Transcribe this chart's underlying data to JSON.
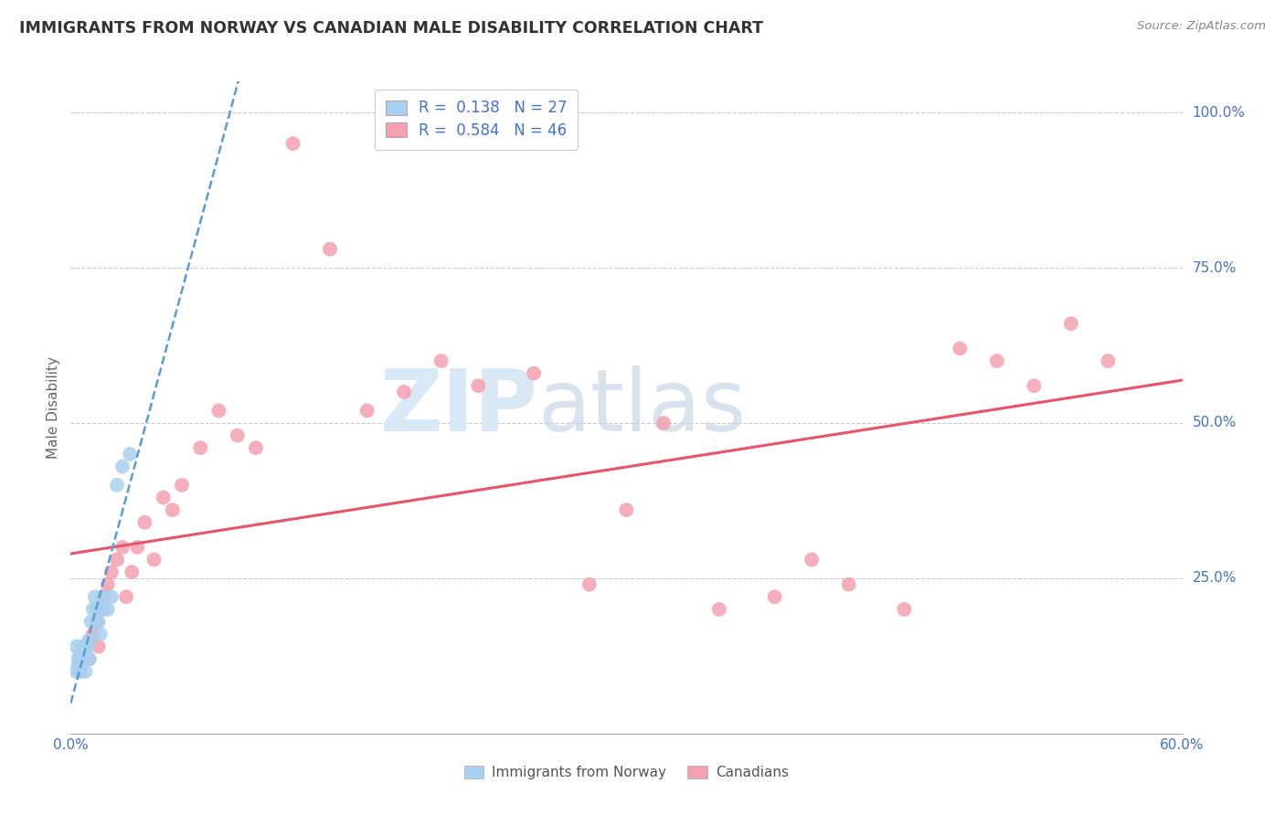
{
  "title": "IMMIGRANTS FROM NORWAY VS CANADIAN MALE DISABILITY CORRELATION CHART",
  "source": "Source: ZipAtlas.com",
  "ylabel": "Male Disability",
  "legend_norway_R": "0.138",
  "legend_norway_N": "27",
  "legend_canada_R": "0.584",
  "legend_canada_N": "46",
  "norway_color": "#a8d0f0",
  "canada_color": "#f4a0b0",
  "norway_line_color": "#5b9bd5",
  "canada_line_color": "#e8546a",
  "watermark_zip": "ZIP",
  "watermark_atlas": "atlas",
  "norway_x": [
    0.003,
    0.004,
    0.005,
    0.006,
    0.007,
    0.008,
    0.009,
    0.01,
    0.011,
    0.012,
    0.013,
    0.014,
    0.015,
    0.016,
    0.017,
    0.018,
    0.02,
    0.022,
    0.025,
    0.028,
    0.032,
    0.003,
    0.004,
    0.005,
    0.006,
    0.008,
    0.01
  ],
  "norway_y": [
    0.14,
    0.12,
    0.13,
    0.14,
    0.12,
    0.13,
    0.14,
    0.15,
    0.18,
    0.2,
    0.22,
    0.2,
    0.18,
    0.16,
    0.22,
    0.2,
    0.2,
    0.22,
    0.4,
    0.43,
    0.45,
    0.1,
    0.11,
    0.1,
    0.12,
    0.1,
    0.12
  ],
  "canada_x": [
    0.005,
    0.008,
    0.01,
    0.012,
    0.014,
    0.016,
    0.018,
    0.02,
    0.022,
    0.025,
    0.028,
    0.03,
    0.033,
    0.036,
    0.04,
    0.045,
    0.05,
    0.055,
    0.06,
    0.07,
    0.08,
    0.09,
    0.1,
    0.12,
    0.14,
    0.16,
    0.18,
    0.2,
    0.22,
    0.25,
    0.28,
    0.3,
    0.32,
    0.35,
    0.38,
    0.4,
    0.42,
    0.45,
    0.48,
    0.5,
    0.52,
    0.54,
    0.56,
    0.005,
    0.01,
    0.015
  ],
  "canada_y": [
    0.12,
    0.14,
    0.15,
    0.16,
    0.18,
    0.2,
    0.22,
    0.24,
    0.26,
    0.28,
    0.3,
    0.22,
    0.26,
    0.3,
    0.34,
    0.28,
    0.38,
    0.36,
    0.4,
    0.46,
    0.52,
    0.48,
    0.46,
    0.95,
    0.78,
    0.52,
    0.55,
    0.6,
    0.56,
    0.58,
    0.24,
    0.36,
    0.5,
    0.2,
    0.22,
    0.28,
    0.24,
    0.2,
    0.62,
    0.6,
    0.56,
    0.66,
    0.6,
    0.1,
    0.12,
    0.14
  ],
  "xmin": 0.0,
  "xmax": 0.6,
  "ymin": 0.0,
  "ymax": 1.05,
  "yticks": [
    0.25,
    0.5,
    0.75,
    1.0
  ],
  "ytick_labels": [
    "25.0%",
    "50.0%",
    "75.0%",
    "100.0%"
  ],
  "xtick_labels": [
    "0.0%",
    "60.0%"
  ]
}
